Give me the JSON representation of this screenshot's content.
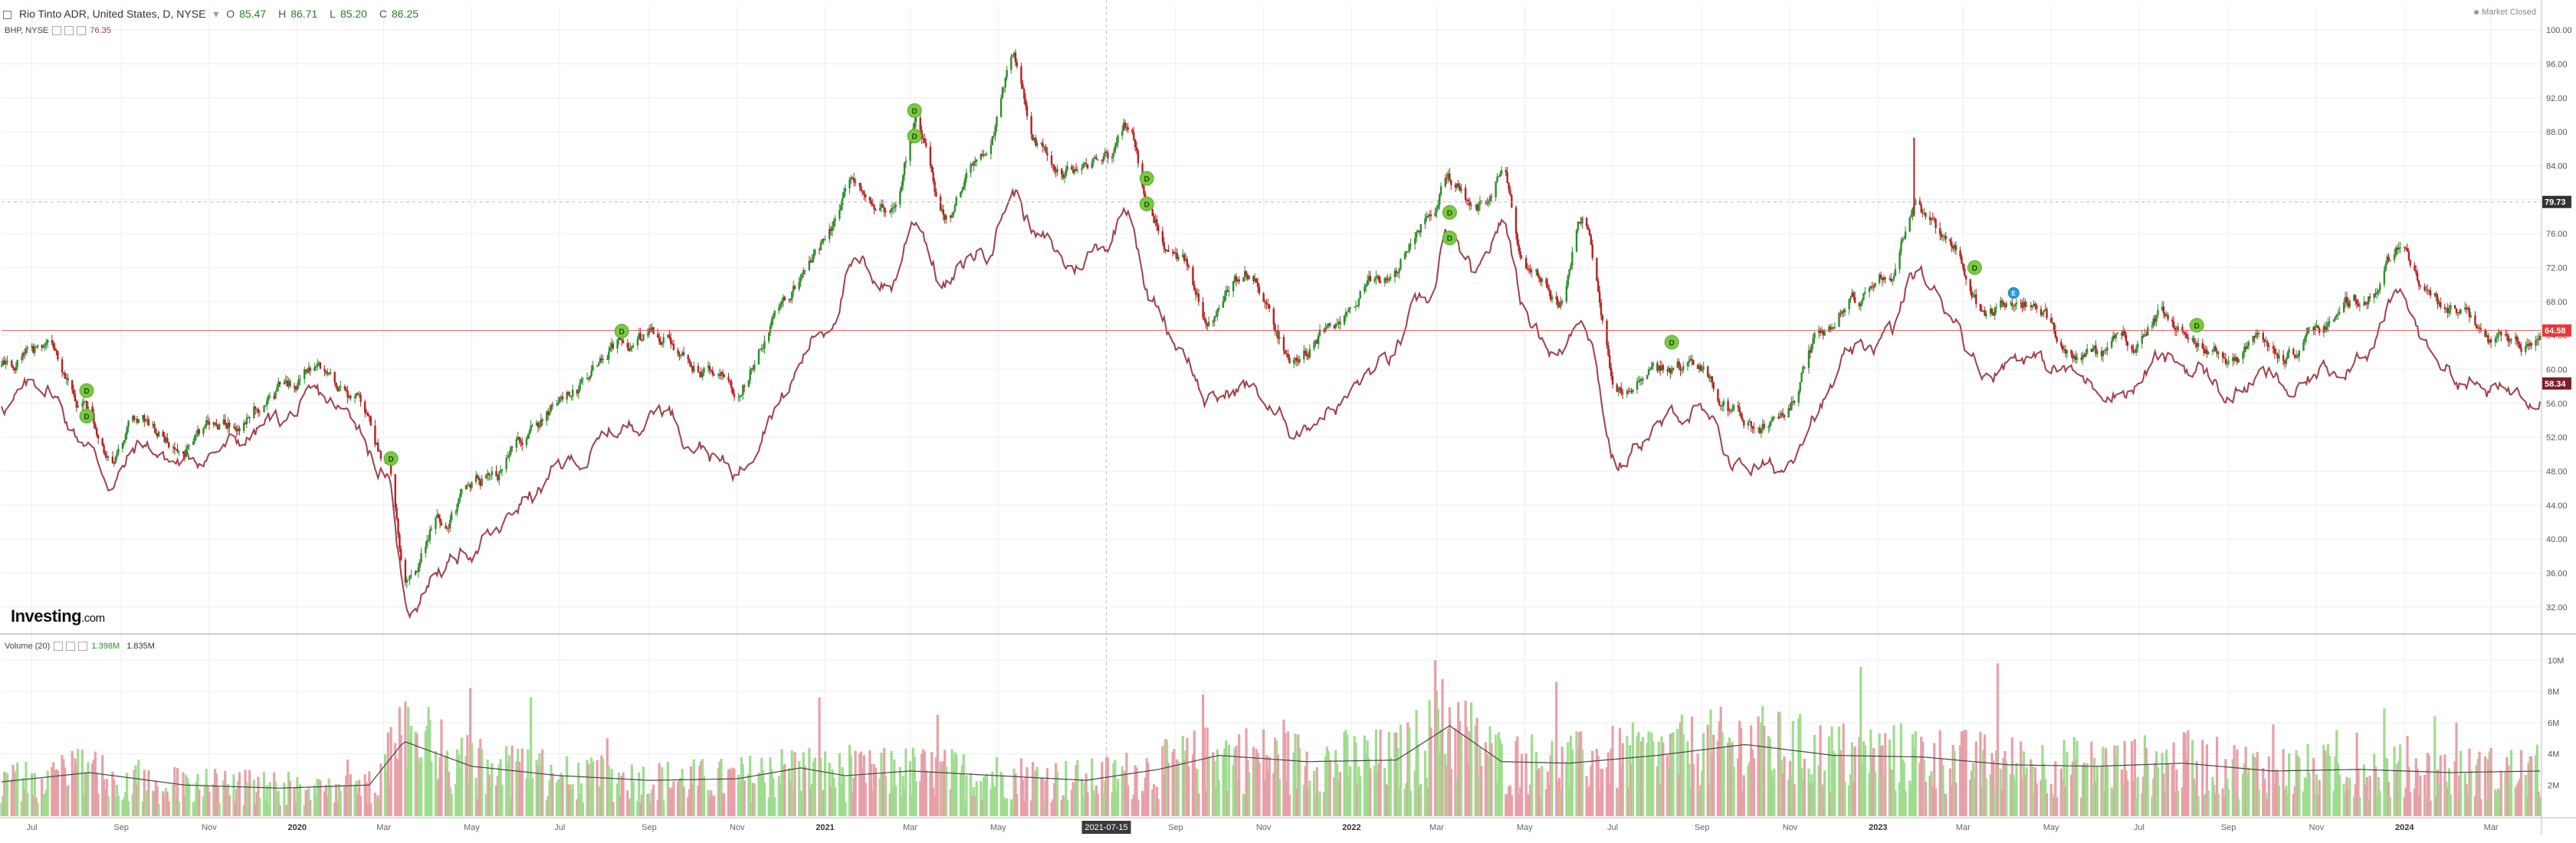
{
  "header": {
    "title": "Rio Tinto ADR, United States, D, NYSE",
    "ohlc": [
      {
        "key": "O",
        "value": "85.47"
      },
      {
        "key": "H",
        "value": "86.71"
      },
      {
        "key": "L",
        "value": "85.20"
      },
      {
        "key": "C",
        "value": "86.25"
      }
    ],
    "compare_label": "BHP, NYSE",
    "compare_value": "76.35",
    "status": "Market Closed"
  },
  "volume_header": {
    "label": "Volume (20)",
    "value1": "1.398M",
    "value2": "1.835M"
  },
  "logo": {
    "main": "Investing",
    "suffix": ".com"
  },
  "crosshair_date": "2021-07-15",
  "colors": {
    "up": "#2e8b2e",
    "down": "#b22222",
    "compare_line": "#a0404a",
    "vol_up": "#9fdc8f",
    "vol_down": "#e8a0a8",
    "vol_ma": "#444444",
    "price_line": "#e35b5b",
    "dividend": "#7ac943",
    "event": "#2d9be0"
  },
  "chart_data": [
    {
      "type": "candlestick",
      "yaxis_side": "right",
      "ylim": [
        29,
        101
      ],
      "yticks": [
        "32.00",
        "36.00",
        "40.00",
        "44.00",
        "48.00",
        "52.00",
        "56.00",
        "60.00",
        "64.00",
        "68.00",
        "72.00",
        "76.00",
        "80.00",
        "84.00",
        "88.00",
        "92.00",
        "96.00",
        "100.00"
      ],
      "price_labels": [
        {
          "value": 79.73,
          "text": "79.73",
          "color": "#333333"
        },
        {
          "value": 64.58,
          "text": "64.58",
          "color": "#e53935"
        },
        {
          "value": 58.34,
          "text": "58.34",
          "color": "#7b1f2b"
        }
      ],
      "xlim": [
        "2019-06-10",
        "2024-04-05"
      ],
      "xticks": [
        {
          "date": "2019-07-01",
          "label": "Jul"
        },
        {
          "date": "2019-09-01",
          "label": "Sep"
        },
        {
          "date": "2019-11-01",
          "label": "Nov"
        },
        {
          "date": "2020-01-01",
          "label": "2020"
        },
        {
          "date": "2020-03-01",
          "label": "Mar"
        },
        {
          "date": "2020-05-01",
          "label": "May"
        },
        {
          "date": "2020-07-01",
          "label": "Jul"
        },
        {
          "date": "2020-09-01",
          "label": "Sep"
        },
        {
          "date": "2020-11-01",
          "label": "Nov"
        },
        {
          "date": "2021-01-01",
          "label": "2021"
        },
        {
          "date": "2021-03-01",
          "label": "Mar"
        },
        {
          "date": "2021-05-01",
          "label": "May"
        },
        {
          "date": "2021-09-01",
          "label": "Sep"
        },
        {
          "date": "2021-11-01",
          "label": "Nov"
        },
        {
          "date": "2022-01-01",
          "label": "2022"
        },
        {
          "date": "2022-03-01",
          "label": "Mar"
        },
        {
          "date": "2022-05-01",
          "label": "May"
        },
        {
          "date": "2022-07-01",
          "label": "Jul"
        },
        {
          "date": "2022-09-01",
          "label": "Sep"
        },
        {
          "date": "2022-11-01",
          "label": "Nov"
        },
        {
          "date": "2023-01-01",
          "label": "2023"
        },
        {
          "date": "2023-03-01",
          "label": "Mar"
        },
        {
          "date": "2023-05-01",
          "label": "May"
        },
        {
          "date": "2023-07-01",
          "label": "Jul"
        },
        {
          "date": "2023-09-01",
          "label": "Sep"
        },
        {
          "date": "2023-11-01",
          "label": "Nov"
        },
        {
          "date": "2024-01-01",
          "label": "2024"
        },
        {
          "date": "2024-03-01",
          "label": "Mar"
        }
      ],
      "series": [
        {
          "name": "Rio Tinto ADR",
          "kind": "candlestick",
          "anchors": [
            [
              "2019-06-10",
              60
            ],
            [
              "2019-07-10",
              62
            ],
            [
              "2019-08-05",
              56
            ],
            [
              "2019-08-25",
              49
            ],
            [
              "2019-09-15",
              54
            ],
            [
              "2019-10-10",
              51
            ],
            [
              "2019-11-15",
              54
            ],
            [
              "2019-12-20",
              58
            ],
            [
              "2020-01-15",
              61
            ],
            [
              "2020-02-10",
              57
            ],
            [
              "2020-03-01",
              50
            ],
            [
              "2020-03-18",
              36
            ],
            [
              "2020-04-10",
              43
            ],
            [
              "2020-05-15",
              47
            ],
            [
              "2020-06-10",
              53
            ],
            [
              "2020-07-10",
              58
            ],
            [
              "2020-08-15",
              63
            ],
            [
              "2020-09-10",
              64
            ],
            [
              "2020-10-01",
              60
            ],
            [
              "2020-10-30",
              58
            ],
            [
              "2020-11-30",
              67
            ],
            [
              "2020-12-31",
              75
            ],
            [
              "2021-01-20",
              82
            ],
            [
              "2021-02-15",
              79
            ],
            [
              "2021-03-05",
              88
            ],
            [
              "2021-03-25",
              79
            ],
            [
              "2021-04-20",
              84
            ],
            [
              "2021-05-12",
              95
            ],
            [
              "2021-05-30",
              87
            ],
            [
              "2021-06-20",
              84
            ],
            [
              "2021-07-15",
              85
            ],
            [
              "2021-07-30",
              89
            ],
            [
              "2021-08-15",
              77
            ],
            [
              "2021-09-05",
              73
            ],
            [
              "2021-09-25",
              66
            ],
            [
              "2021-10-20",
              71
            ],
            [
              "2021-11-20",
              62
            ],
            [
              "2021-12-20",
              65
            ],
            [
              "2022-01-20",
              70
            ],
            [
              "2022-02-25",
              79
            ],
            [
              "2022-03-08",
              83
            ],
            [
              "2022-03-30",
              79
            ],
            [
              "2022-04-15",
              83
            ],
            [
              "2022-05-05",
              71
            ],
            [
              "2022-05-25",
              67
            ],
            [
              "2022-06-10",
              78
            ],
            [
              "2022-07-05",
              57
            ],
            [
              "2022-07-30",
              59
            ],
            [
              "2022-08-25",
              61
            ],
            [
              "2022-09-25",
              55
            ],
            [
              "2022-10-25",
              53
            ],
            [
              "2022-11-20",
              63
            ],
            [
              "2022-12-15",
              68
            ],
            [
              "2023-01-10",
              72
            ],
            [
              "2023-01-26",
              79
            ],
            [
              "2023-02-20",
              75
            ],
            [
              "2023-03-15",
              67
            ],
            [
              "2023-04-10",
              68
            ],
            [
              "2023-05-05",
              64
            ],
            [
              "2023-06-01",
              61
            ],
            [
              "2023-06-25",
              63
            ],
            [
              "2023-07-15",
              66
            ],
            [
              "2023-08-10",
              64
            ],
            [
              "2023-09-01",
              61
            ],
            [
              "2023-09-25",
              63
            ],
            [
              "2023-10-15",
              62
            ],
            [
              "2023-11-10",
              65
            ],
            [
              "2023-12-05",
              69
            ],
            [
              "2023-12-28",
              74
            ],
            [
              "2024-01-20",
              68
            ],
            [
              "2024-02-10",
              66
            ],
            [
              "2024-03-01",
              63
            ],
            [
              "2024-04-05",
              64
            ]
          ],
          "last": {
            "open": 85.47,
            "high": 86.71,
            "low": 85.2,
            "close": 86.25
          }
        },
        {
          "name": "BHP, NYSE",
          "kind": "line",
          "anchors": [
            [
              "2019-06-10",
              56
            ],
            [
              "2019-07-10",
              58
            ],
            [
              "2019-08-05",
              52
            ],
            [
              "2019-08-25",
              47
            ],
            [
              "2019-09-15",
              51
            ],
            [
              "2019-10-10",
              49
            ],
            [
              "2019-11-15",
              51
            ],
            [
              "2019-12-20",
              54
            ],
            [
              "2020-01-15",
              56
            ],
            [
              "2020-02-10",
              54
            ],
            [
              "2020-03-01",
              48
            ],
            [
              "2020-03-18",
              32
            ],
            [
              "2020-04-10",
              37
            ],
            [
              "2020-05-15",
              40
            ],
            [
              "2020-06-10",
              45
            ],
            [
              "2020-07-10",
              49
            ],
            [
              "2020-08-15",
              53
            ],
            [
              "2020-09-10",
              56
            ],
            [
              "2020-10-01",
              52
            ],
            [
              "2020-10-30",
              48
            ],
            [
              "2020-11-30",
              57
            ],
            [
              "2020-12-31",
              65
            ],
            [
              "2021-01-20",
              72
            ],
            [
              "2021-02-15",
              70
            ],
            [
              "2021-03-05",
              78
            ],
            [
              "2021-03-25",
              70
            ],
            [
              "2021-04-20",
              74
            ],
            [
              "2021-05-12",
              81
            ],
            [
              "2021-05-30",
              75
            ],
            [
              "2021-06-20",
              72
            ],
            [
              "2021-07-15",
              75
            ],
            [
              "2021-07-30",
              80
            ],
            [
              "2021-08-15",
              68
            ],
            [
              "2021-09-05",
              63
            ],
            [
              "2021-09-25",
              56
            ],
            [
              "2021-10-20",
              58
            ],
            [
              "2021-11-20",
              53
            ],
            [
              "2021-12-20",
              56
            ],
            [
              "2022-01-20",
              60
            ],
            [
              "2022-02-25",
              68
            ],
            [
              "2022-03-08",
              75
            ],
            [
              "2022-03-30",
              70
            ],
            [
              "2022-04-15",
              77
            ],
            [
              "2022-05-05",
              66
            ],
            [
              "2022-05-25",
              62
            ],
            [
              "2022-06-10",
              67
            ],
            [
              "2022-07-05",
              49
            ],
            [
              "2022-07-30",
              53
            ],
            [
              "2022-08-25",
              55
            ],
            [
              "2022-09-25",
              49
            ],
            [
              "2022-10-25",
              48
            ],
            [
              "2022-11-20",
              56
            ],
            [
              "2022-12-15",
              61
            ],
            [
              "2023-01-10",
              64
            ],
            [
              "2023-01-26",
              71
            ],
            [
              "2023-02-20",
              67
            ],
            [
              "2023-03-15",
              60
            ],
            [
              "2023-04-10",
              62
            ],
            [
              "2023-05-05",
              60
            ],
            [
              "2023-06-01",
              58
            ],
            [
              "2023-06-25",
              58
            ],
            [
              "2023-07-15",
              61
            ],
            [
              "2023-08-10",
              60
            ],
            [
              "2023-09-01",
              57
            ],
            [
              "2023-09-25",
              59
            ],
            [
              "2023-10-15",
              57
            ],
            [
              "2023-11-10",
              60
            ],
            [
              "2023-12-05",
              63
            ],
            [
              "2023-12-28",
              68
            ],
            [
              "2024-01-20",
              62
            ],
            [
              "2024-02-10",
              59
            ],
            [
              "2024-03-01",
              57
            ],
            [
              "2024-04-05",
              58
            ]
          ]
        }
      ],
      "dividend_markers": [
        {
          "date": "2019-08-08",
          "value": 57.5,
          "label": "D"
        },
        {
          "date": "2019-08-08",
          "value": 54.5,
          "label": "D"
        },
        {
          "date": "2020-03-06",
          "value": 49.5,
          "label": "D"
        },
        {
          "date": "2020-08-13",
          "value": 64.5,
          "label": "D"
        },
        {
          "date": "2021-03-04",
          "value": 90.5,
          "label": "D"
        },
        {
          "date": "2021-03-04",
          "value": 87.5,
          "label": "D"
        },
        {
          "date": "2021-08-12",
          "value": 82.5,
          "label": "D"
        },
        {
          "date": "2021-08-12",
          "value": 79.5,
          "label": "D"
        },
        {
          "date": "2022-03-10",
          "value": 78.5,
          "label": "D"
        },
        {
          "date": "2022-03-10",
          "value": 75.5,
          "label": "D"
        },
        {
          "date": "2022-08-11",
          "value": 63.2,
          "label": "D"
        },
        {
          "date": "2023-03-09",
          "value": 72.0,
          "label": "D"
        },
        {
          "date": "2023-08-10",
          "value": 65.2,
          "label": "D"
        }
      ],
      "event_markers": [
        {
          "date": "2023-04-05",
          "value": 69.0,
          "label": "E"
        }
      ]
    },
    {
      "type": "bar",
      "name": "Volume",
      "ylim": [
        0,
        11000000
      ],
      "yticks": [
        "2M",
        "4M",
        "6M",
        "8M",
        "10M"
      ],
      "volume_anchors": [
        [
          "2019-06-10",
          2.2
        ],
        [
          "2019-08-10",
          2.8
        ],
        [
          "2019-10-15",
          2.0
        ],
        [
          "2019-12-20",
          1.8
        ],
        [
          "2020-02-20",
          2.0
        ],
        [
          "2020-03-15",
          4.8
        ],
        [
          "2020-05-01",
          3.2
        ],
        [
          "2020-07-01",
          2.6
        ],
        [
          "2020-09-01",
          2.3
        ],
        [
          "2020-11-01",
          2.4
        ],
        [
          "2020-12-15",
          3.1
        ],
        [
          "2021-01-15",
          2.6
        ],
        [
          "2021-03-01",
          2.9
        ],
        [
          "2021-05-01",
          2.6
        ],
        [
          "2021-07-01",
          2.3
        ],
        [
          "2021-08-20",
          3.0
        ],
        [
          "2021-10-01",
          3.9
        ],
        [
          "2021-12-01",
          3.5
        ],
        [
          "2022-02-01",
          3.6
        ],
        [
          "2022-03-10",
          5.8
        ],
        [
          "2022-04-15",
          3.5
        ],
        [
          "2022-06-01",
          3.4
        ],
        [
          "2022-08-01",
          3.9
        ],
        [
          "2022-10-01",
          4.6
        ],
        [
          "2022-12-01",
          3.9
        ],
        [
          "2023-02-01",
          3.8
        ],
        [
          "2023-04-01",
          3.3
        ],
        [
          "2023-06-01",
          3.2
        ],
        [
          "2023-08-01",
          3.4
        ],
        [
          "2023-10-01",
          2.9
        ],
        [
          "2023-12-01",
          3.0
        ],
        [
          "2024-02-01",
          2.8
        ],
        [
          "2024-04-05",
          2.9
        ]
      ],
      "volume_spikes": [
        [
          "2020-03-12",
          7.0
        ],
        [
          "2021-03-20",
          6.5
        ],
        [
          "2021-09-20",
          7.8
        ],
        [
          "2022-02-28",
          10.0
        ],
        [
          "2022-03-05",
          8.8
        ],
        [
          "2023-03-25",
          9.8
        ],
        [
          "2022-10-10",
          6.4
        ],
        [
          "2021-11-15",
          6.2
        ],
        [
          "2023-10-02",
          5.9
        ]
      ]
    }
  ]
}
